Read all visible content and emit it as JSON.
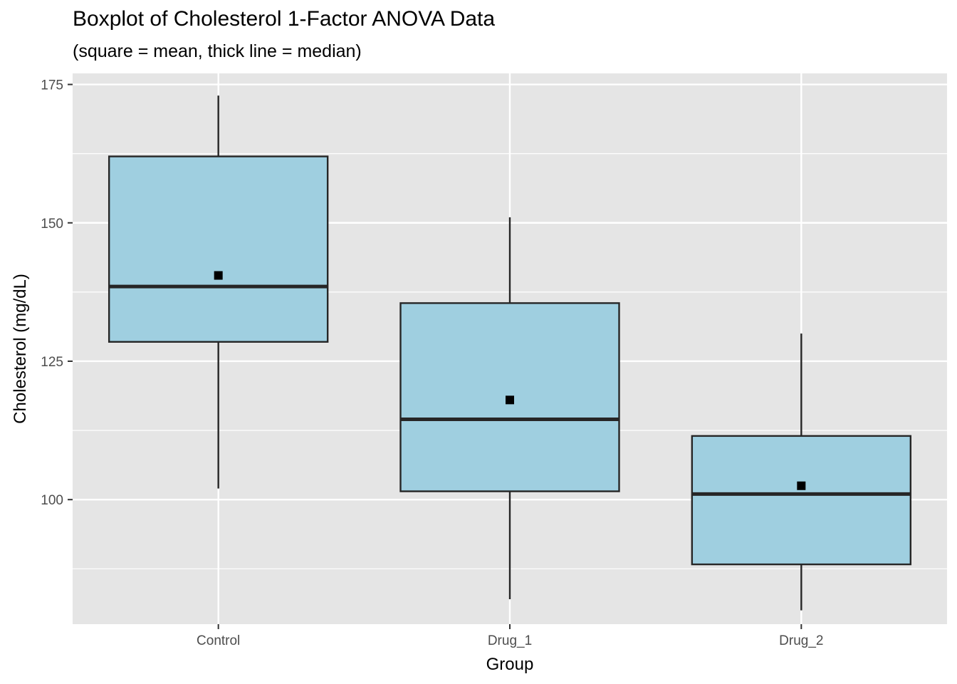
{
  "chart_data": {
    "type": "boxplot",
    "title": "Boxplot of Cholesterol 1-Factor ANOVA Data",
    "subtitle": "(square = mean, thick line = median)",
    "xlabel": "Group",
    "ylabel": "Cholesterol (mg/dL)",
    "ylim": [
      77.5,
      177
    ],
    "y_ticks": [
      100,
      125,
      150,
      175
    ],
    "y_minor_ticks": [
      87.5,
      112.5,
      137.5,
      162.5
    ],
    "grid": true,
    "colors": {
      "panel_background": "#e5e5e5",
      "grid": "#ffffff",
      "box_fill": "#9fcfe0",
      "box_stroke": "#262626",
      "mean_marker": "#000000"
    },
    "categories": [
      "Control",
      "Drug_1",
      "Drug_2"
    ],
    "boxes": [
      {
        "group": "Control",
        "whisker_low": 102,
        "q1": 128.5,
        "median": 138.5,
        "q3": 162,
        "whisker_high": 173,
        "mean": 140.5
      },
      {
        "group": "Drug_1",
        "whisker_low": 82,
        "q1": 101.5,
        "median": 114.5,
        "q3": 135.5,
        "whisker_high": 151,
        "mean": 118
      },
      {
        "group": "Drug_2",
        "whisker_low": 80,
        "q1": 88.3,
        "median": 101,
        "q3": 111.5,
        "whisker_high": 130,
        "mean": 102.5
      }
    ]
  }
}
